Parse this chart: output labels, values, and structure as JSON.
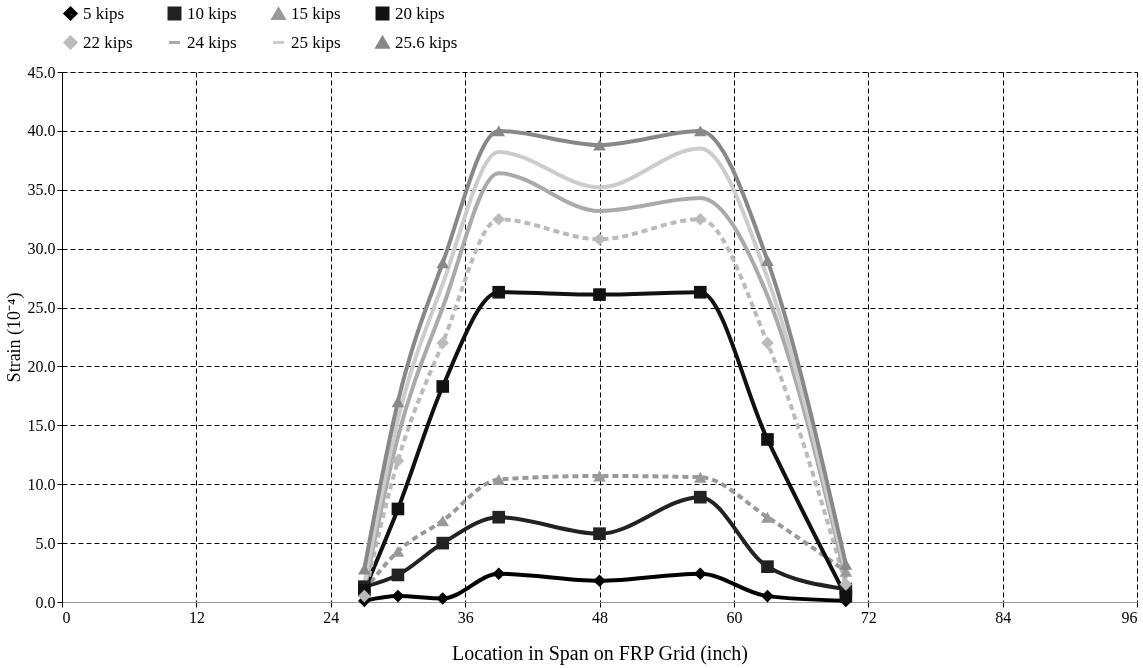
{
  "chart_data": {
    "type": "line",
    "xlabel": "Location in Span on FRP Grid (inch)",
    "ylabel": "Strain (10⁻⁴)",
    "xlim": [
      0,
      96
    ],
    "xticks": [
      0,
      12,
      24,
      36,
      48,
      60,
      72,
      84,
      96
    ],
    "ylim": [
      0,
      45
    ],
    "yticks": [
      {
        "value": 0,
        "label": "0.0"
      },
      {
        "value": 5,
        "label": "5.0"
      },
      {
        "value": 10,
        "label": "10.0"
      },
      {
        "value": 15,
        "label": "15.0"
      },
      {
        "value": 20,
        "label": "20.0"
      },
      {
        "value": 25,
        "label": "25.0"
      },
      {
        "value": 30,
        "label": "30.0"
      },
      {
        "value": 35,
        "label": "35.0"
      },
      {
        "value": 40,
        "label": "40.0"
      },
      {
        "value": 45,
        "label": "45.0"
      }
    ],
    "grid": true,
    "legend": "top",
    "x": [
      27,
      30,
      34,
      39,
      48,
      57,
      63,
      70
    ],
    "series": [
      {
        "name": "5 kips",
        "color": "#000000",
        "marker": "diamond",
        "line_style": "solid",
        "values": [
          0.1,
          0.5,
          0.3,
          2.4,
          1.8,
          2.4,
          0.5,
          0.1
        ]
      },
      {
        "name": "10 kips",
        "color": "#222222",
        "marker": "square",
        "line_style": "solid",
        "values": [
          1.3,
          2.3,
          5.0,
          7.2,
          5.8,
          8.9,
          3.0,
          1.1
        ]
      },
      {
        "name": "15 kips",
        "color": "#999999",
        "marker": "triangle",
        "line_style": "dashed",
        "values": [
          1.0,
          4.3,
          6.9,
          10.4,
          10.7,
          10.6,
          7.2,
          2.6
        ]
      },
      {
        "name": "20 kips",
        "color": "#111111",
        "marker": "square",
        "line_style": "solid",
        "values": [
          1.0,
          7.9,
          18.3,
          26.3,
          26.1,
          26.3,
          13.8,
          0.5
        ]
      },
      {
        "name": "22 kips",
        "color": "#bbbbbb",
        "marker": "diamond",
        "line_style": "dashed",
        "values": [
          0.5,
          12.0,
          22.0,
          32.5,
          30.8,
          32.5,
          22.0,
          1.5
        ]
      },
      {
        "name": "24 kips",
        "color": "#aaaaaa",
        "marker": "none",
        "line_style": "solid",
        "values": [
          1.0,
          14.0,
          25.0,
          36.4,
          33.2,
          34.3,
          26.0,
          2.0
        ]
      },
      {
        "name": "25 kips",
        "color": "#cccccc",
        "marker": "none",
        "line_style": "solid",
        "values": [
          1.5,
          15.5,
          27.0,
          38.2,
          35.2,
          38.5,
          27.5,
          2.5
        ]
      },
      {
        "name": "25.6 kips",
        "color": "#888888",
        "marker": "triangle",
        "line_style": "solid",
        "values": [
          2.8,
          17.0,
          28.8,
          40.0,
          38.8,
          40.0,
          29.0,
          3.2
        ]
      }
    ]
  }
}
